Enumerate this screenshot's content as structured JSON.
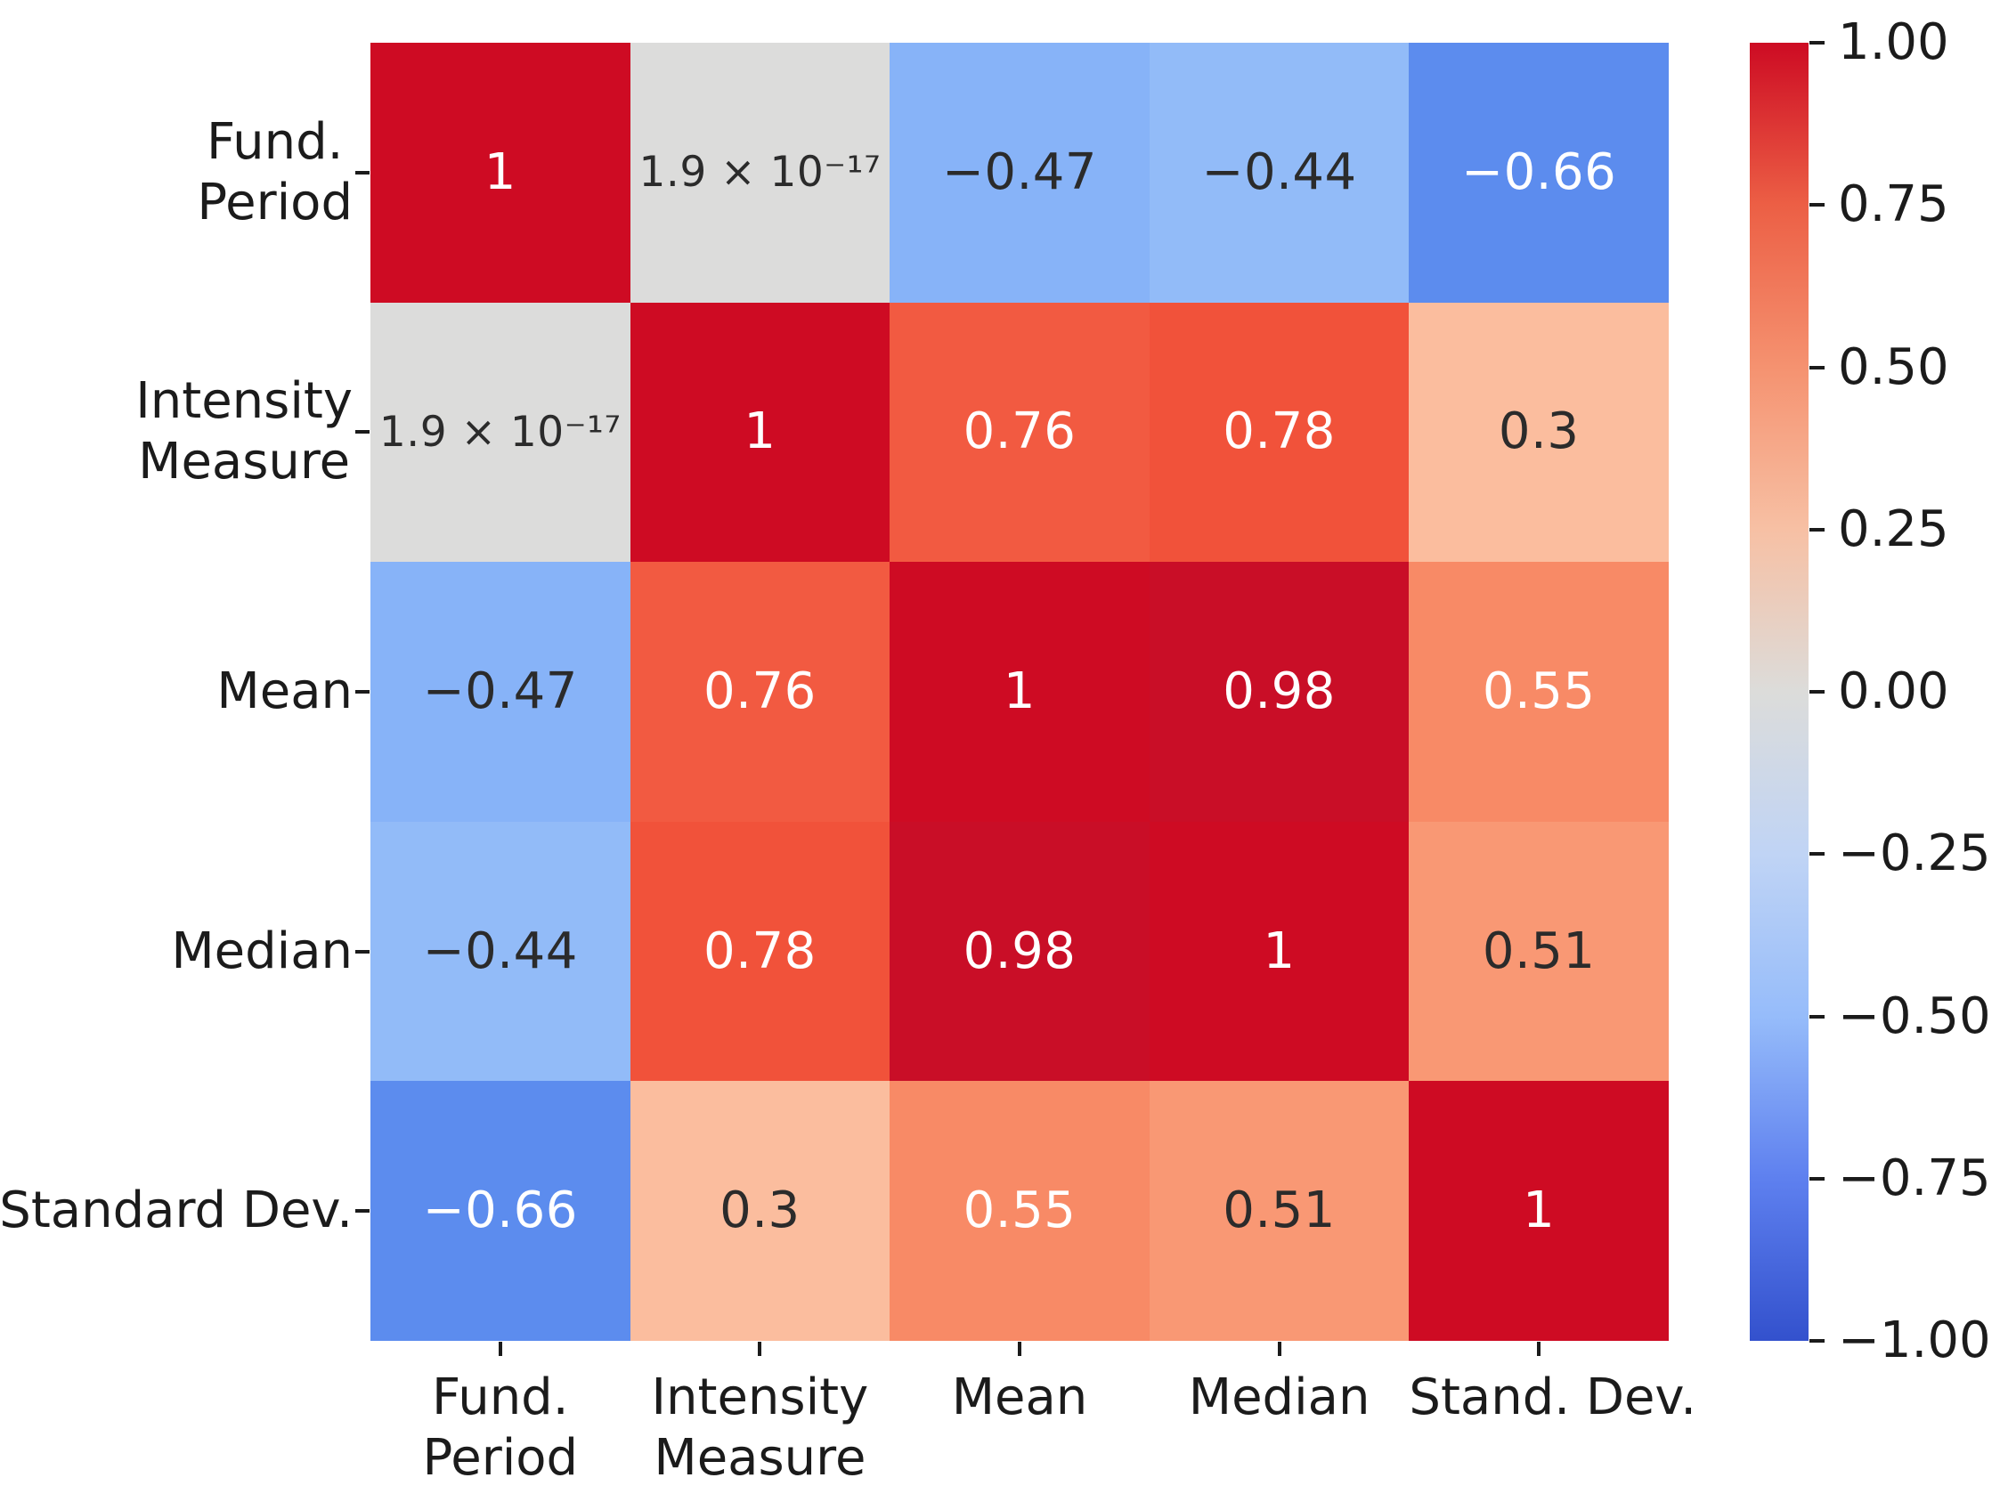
{
  "chart_data": {
    "type": "heatmap",
    "title": "",
    "description": "Correlation matrix heatmap with coolwarm diverging colormap",
    "x_labels": [
      [
        "Fund.",
        "Period"
      ],
      [
        "Intensity",
        "Measure"
      ],
      [
        "Mean"
      ],
      [
        "Median"
      ],
      [
        "Stand. Dev."
      ]
    ],
    "y_labels": [
      [
        "Fund.",
        "Period"
      ],
      [
        "Intensity",
        "Measure"
      ],
      [
        "Mean"
      ],
      [
        "Median"
      ],
      [
        "Standard Dev."
      ]
    ],
    "values": [
      [
        1,
        1.9e-17,
        -0.47,
        -0.44,
        -0.66
      ],
      [
        1.9e-17,
        1,
        0.76,
        0.78,
        0.3
      ],
      [
        -0.47,
        0.76,
        1,
        0.98,
        0.55
      ],
      [
        -0.44,
        0.78,
        0.98,
        1,
        0.51
      ],
      [
        -0.66,
        0.3,
        0.55,
        0.51,
        1
      ]
    ],
    "cell_labels": [
      [
        "1",
        "1.9 × 10⁻¹⁷",
        "−0.47",
        "−0.44",
        "−0.66"
      ],
      [
        "1.9 × 10⁻¹⁷",
        "1",
        "0.76",
        "0.78",
        "0.3"
      ],
      [
        "−0.47",
        "0.76",
        "1",
        "0.98",
        "0.55"
      ],
      [
        "−0.44",
        "0.78",
        "0.98",
        "1",
        "0.51"
      ],
      [
        "−0.66",
        "0.3",
        "0.55",
        "0.51",
        "1"
      ]
    ],
    "cell_colors": [
      [
        "#ce0b23",
        "#dcdcdb",
        "#87b3f8",
        "#92bbf8",
        "#5c8cee"
      ],
      [
        "#dcdcdb",
        "#ce0b23",
        "#f25a41",
        "#f1523a",
        "#fbbd9e"
      ],
      [
        "#87b3f8",
        "#f25a41",
        "#ce0b23",
        "#c90e27",
        "#f88a66"
      ],
      [
        "#92bbf8",
        "#f1523a",
        "#c90e27",
        "#ce0b23",
        "#f99874"
      ],
      [
        "#5c8cee",
        "#fbbd9e",
        "#f88a66",
        "#f99874",
        "#ce0b23"
      ]
    ],
    "cell_text_colors": [
      [
        "#ffffff",
        "#2b2b2b",
        "#2b2b2b",
        "#2b2b2b",
        "#ffffff"
      ],
      [
        "#2b2b2b",
        "#ffffff",
        "#ffffff",
        "#ffffff",
        "#2b2b2b"
      ],
      [
        "#2b2b2b",
        "#ffffff",
        "#ffffff",
        "#ffffff",
        "#ffffff"
      ],
      [
        "#2b2b2b",
        "#ffffff",
        "#ffffff",
        "#ffffff",
        "#2b2b2b"
      ],
      [
        "#ffffff",
        "#2b2b2b",
        "#ffffff",
        "#2b2b2b",
        "#ffffff"
      ]
    ],
    "colorbar": {
      "min": -1,
      "max": 1,
      "tick_labels": [
        "1.00",
        "0.75",
        "0.50",
        "0.25",
        "0.00",
        "−0.25",
        "−0.50",
        "−0.75",
        "−1.00"
      ],
      "tick_values": [
        1,
        0.75,
        0.5,
        0.25,
        0,
        -0.25,
        -0.5,
        -0.75,
        -1
      ],
      "gradient_stops_top_to_bottom": [
        "#cd0b23",
        "#ec5f45",
        "#f59270",
        "#f7c0a4",
        "#dcdcda",
        "#c0d4f5",
        "#96bcfa",
        "#5e80ef",
        "#3351cd"
      ]
    },
    "style": {
      "axis_text_color": "#1b1b1b",
      "annotation_dark": "#2b2b2b",
      "annotation_light": "#ffffff",
      "background": "#ffffff"
    },
    "legend_position": "right-colorbar",
    "grid": false
  }
}
